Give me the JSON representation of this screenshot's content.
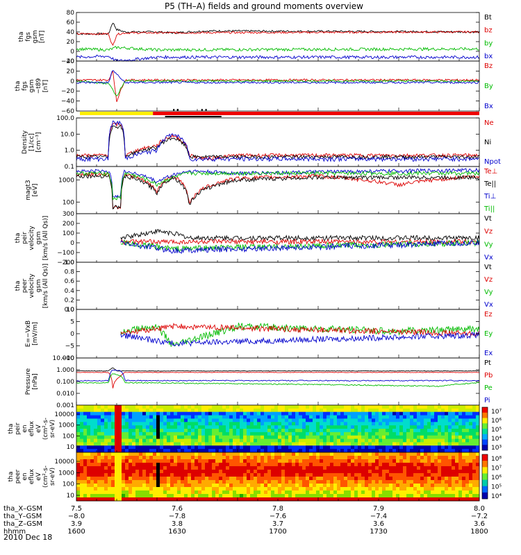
{
  "title": "P5 (TH–A) fields and ground moments overview",
  "date": "2010 Dec 18",
  "chart_data": [
    {
      "id": "p1",
      "type": "line",
      "ylabel": [
        "tha",
        "fgs",
        "gsm",
        "[nT]"
      ],
      "yticks": [
        "80",
        "60",
        "40",
        "20",
        "0",
        "−20"
      ],
      "ylim": [
        -20,
        80
      ],
      "legend": [
        {
          "name": "Bt",
          "color": "#000000"
        },
        {
          "name": "bz",
          "color": "#dd0000"
        },
        {
          "name": "by",
          "color": "#00bb00"
        },
        {
          "name": "bx",
          "color": "#0000cc"
        }
      ],
      "series": [
        {
          "name": "Bt",
          "color": "#000000",
          "base": 40,
          "noise": 2,
          "x": [
            7.5,
            7.54,
            7.545,
            7.55,
            7.56,
            7.6,
            7.62,
            7.66,
            8.0
          ],
          "y": [
            36,
            36,
            60,
            45,
            40,
            40,
            38,
            42,
            40
          ]
        },
        {
          "name": "bz",
          "color": "#dd0000",
          "base": 38,
          "noise": 2,
          "x": [
            7.5,
            7.54,
            7.545,
            7.55,
            7.56,
            8.0
          ],
          "y": [
            36,
            36,
            10,
            35,
            38,
            40
          ]
        },
        {
          "name": "by",
          "color": "#00bb00",
          "base": 5,
          "noise": 3,
          "x": [
            7.5,
            7.54,
            7.55,
            7.6,
            8.0
          ],
          "y": [
            5,
            3,
            8,
            3,
            5
          ]
        },
        {
          "name": "bx",
          "color": "#0000cc",
          "base": -12,
          "noise": 3,
          "x": [
            7.5,
            7.54,
            7.55,
            7.6,
            8.0
          ],
          "y": [
            -12,
            -10,
            -20,
            -12,
            -12
          ]
        }
      ]
    },
    {
      "id": "p2",
      "type": "line",
      "ylabel": [
        "tha",
        "fgs",
        "gsm",
        "−t89",
        "[nT]"
      ],
      "yticks": [
        "40",
        "20",
        "0",
        "−20",
        "−40",
        "−60"
      ],
      "ylim": [
        -60,
        40
      ],
      "legend": [
        {
          "name": "Bz",
          "color": "#dd0000"
        },
        {
          "name": "By",
          "color": "#00bb00"
        },
        {
          "name": "Bx",
          "color": "#0000cc"
        }
      ],
      "series": [
        {
          "name": "Bz",
          "color": "#dd0000",
          "base": 2,
          "noise": 2,
          "x": [
            7.5,
            7.54,
            7.545,
            7.55,
            7.56,
            8.0
          ],
          "y": [
            2,
            2,
            20,
            -40,
            2,
            2
          ]
        },
        {
          "name": "By",
          "color": "#00bb00",
          "base": 0,
          "noise": 2,
          "x": [
            7.5,
            7.54,
            7.55,
            7.56,
            8.0
          ],
          "y": [
            0,
            -5,
            -30,
            0,
            0
          ]
        },
        {
          "name": "Bx",
          "color": "#0000cc",
          "base": -3,
          "noise": 2,
          "x": [
            7.5,
            7.54,
            7.545,
            7.56,
            8.0
          ],
          "y": [
            -3,
            -3,
            22,
            -3,
            -3
          ]
        }
      ]
    },
    {
      "id": "p3",
      "type": "line",
      "ylog": true,
      "ylabel": [
        "Density",
        "[1/cc]",
        "[cm⁻³]"
      ],
      "yticks": [
        "100.0",
        "10.0",
        "1.0",
        "0.1"
      ],
      "ylim": [
        0.1,
        100
      ],
      "legend": [
        {
          "name": "Ne",
          "color": "#dd0000"
        },
        {
          "name": "Ni",
          "color": "#000000"
        },
        {
          "name": "Npot",
          "color": "#0000cc"
        }
      ],
      "series": [
        {
          "name": "Ne",
          "color": "#dd0000",
          "base": 0.5,
          "noise": 0.25,
          "x": [
            7.5,
            7.54,
            7.545,
            7.555,
            7.56,
            7.6,
            7.62,
            7.64,
            7.66,
            7.7,
            8.0
          ],
          "y": [
            0.5,
            0.5,
            40,
            40,
            0.4,
            2,
            8,
            0.5,
            0.3,
            0.5,
            0.5
          ]
        },
        {
          "name": "Ni",
          "color": "#000000",
          "base": 0.4,
          "noise": 0.25,
          "x": [
            7.5,
            7.54,
            7.545,
            7.555,
            7.56,
            7.6,
            7.62,
            7.64,
            8.0
          ],
          "y": [
            0.4,
            0.4,
            30,
            30,
            0.4,
            1.5,
            6,
            0.4,
            0.4
          ]
        },
        {
          "name": "Npot",
          "color": "#0000cc",
          "base": 0.3,
          "noise": 0.3,
          "x": [
            7.5,
            7.54,
            7.545,
            7.555,
            7.56,
            7.6,
            7.62,
            7.64,
            8.0
          ],
          "y": [
            0.3,
            0.3,
            50,
            50,
            0.3,
            1,
            10,
            0.3,
            0.3
          ]
        }
      ]
    },
    {
      "id": "p4",
      "type": "line",
      "ylog": true,
      "ylabel": [
        "magt3",
        "[eV]"
      ],
      "yticks": [
        "1000",
        "100"
      ],
      "ylim": [
        30,
        4000
      ],
      "legend": [
        {
          "name": "Te⊥",
          "color": "#dd0000"
        },
        {
          "name": "Te||",
          "color": "#000000"
        },
        {
          "name": "Ti⊥",
          "color": "#0000cc"
        },
        {
          "name": "Ti||",
          "color": "#00bb00"
        }
      ],
      "series": [
        {
          "name": "Te⊥",
          "color": "#dd0000",
          "base": 1800,
          "noise": 0.2,
          "x": [
            7.5,
            7.54,
            7.545,
            7.555,
            7.56,
            7.6,
            7.62,
            7.64,
            7.7,
            7.8,
            7.9,
            8.0
          ],
          "y": [
            1800,
            1800,
            60,
            60,
            1800,
            300,
            1500,
            80,
            1200,
            1500,
            600,
            1500
          ]
        },
        {
          "name": "Te||",
          "color": "#000000",
          "base": 1500,
          "noise": 0.2,
          "x": [
            7.5,
            7.54,
            7.545,
            7.555,
            7.56,
            7.6,
            7.62,
            7.64,
            7.7,
            7.8,
            8.0
          ],
          "y": [
            1500,
            1500,
            60,
            60,
            1500,
            250,
            1300,
            70,
            1000,
            1300,
            1300
          ]
        },
        {
          "name": "Ti⊥",
          "color": "#0000cc",
          "base": 2500,
          "noise": 0.2,
          "x": [
            7.5,
            7.54,
            7.545,
            7.555,
            7.56,
            7.6,
            7.64,
            7.7,
            8.0
          ],
          "y": [
            2500,
            2500,
            200,
            200,
            2500,
            800,
            2500,
            2000,
            2800
          ]
        },
        {
          "name": "Ti||",
          "color": "#00bb00",
          "base": 2000,
          "noise": 0.2,
          "x": [
            7.5,
            7.54,
            7.545,
            7.555,
            7.56,
            7.6,
            7.64,
            8.0
          ],
          "y": [
            2000,
            2000,
            150,
            150,
            2000,
            600,
            2000,
            2000
          ]
        }
      ]
    },
    {
      "id": "p5",
      "type": "line",
      "ylabel": [
        "tha",
        "peir",
        "velocity",
        "gsm",
        "[km/s (All Qs)]"
      ],
      "yticks": [
        "300",
        "200",
        "100",
        "0",
        "−100",
        "−200"
      ],
      "ylim": [
        -200,
        300
      ],
      "legend": [
        {
          "name": "Vt",
          "color": "#000000"
        },
        {
          "name": "Vz",
          "color": "#dd0000"
        },
        {
          "name": "Vy",
          "color": "#00bb00"
        },
        {
          "name": "Vx",
          "color": "#0000cc"
        }
      ],
      "series": [
        {
          "name": "Vt",
          "color": "#000000",
          "start": 7.555,
          "base": 50,
          "noise": 25,
          "x": [
            7.555,
            7.6,
            7.62,
            7.64,
            8.0
          ],
          "y": [
            50,
            120,
            100,
            50,
            50
          ]
        },
        {
          "name": "Vz",
          "color": "#dd0000",
          "start": 7.555,
          "base": 10,
          "noise": 25,
          "x": [
            7.555,
            8.0
          ],
          "y": [
            10,
            10
          ]
        },
        {
          "name": "Vy",
          "color": "#00bb00",
          "start": 7.555,
          "base": 0,
          "noise": 30,
          "x": [
            7.555,
            7.62,
            8.0
          ],
          "y": [
            0,
            -60,
            0
          ]
        },
        {
          "name": "Vx",
          "color": "#0000cc",
          "start": 7.555,
          "base": 0,
          "noise": 30,
          "x": [
            7.555,
            7.62,
            8.0
          ],
          "y": [
            0,
            -80,
            0
          ]
        }
      ]
    },
    {
      "id": "p6",
      "type": "line",
      "ylabel": [
        "tha",
        "peer",
        "velocity",
        "gsm",
        "[km/s (All Qs)]"
      ],
      "yticks": [
        "1.0",
        "0.8",
        "0.6",
        "0.4",
        "0.2",
        "0.0"
      ],
      "ylim": [
        0,
        1
      ],
      "legend": [
        {
          "name": "Vt",
          "color": "#000000"
        },
        {
          "name": "Vz",
          "color": "#dd0000"
        },
        {
          "name": "Vy",
          "color": "#00bb00"
        },
        {
          "name": "Vx",
          "color": "#0000cc"
        }
      ],
      "series": []
    },
    {
      "id": "p7",
      "type": "line",
      "ylabel": [
        "E=−VxB",
        "[mV/m]"
      ],
      "yticks": [
        "10",
        "5",
        "0",
        "−5",
        "−10"
      ],
      "ylim": [
        -10,
        10
      ],
      "legend": [
        {
          "name": "Ez",
          "color": "#dd0000"
        },
        {
          "name": "Ey",
          "color": "#00bb00"
        },
        {
          "name": "Ex",
          "color": "#0000cc"
        }
      ],
      "series": [
        {
          "name": "Ey",
          "color": "#00bb00",
          "start": 7.555,
          "base": 1,
          "noise": 1.5,
          "x": [
            7.555,
            7.6,
            7.62,
            7.7,
            7.9,
            8.0
          ],
          "y": [
            1,
            3,
            -5,
            3,
            1,
            2
          ]
        },
        {
          "name": "Ez",
          "color": "#dd0000",
          "start": 7.555,
          "base": 0,
          "noise": 1.2,
          "x": [
            7.555,
            7.62,
            8.0
          ],
          "y": [
            0,
            3,
            0
          ]
        },
        {
          "name": "Ex",
          "color": "#0000cc",
          "start": 7.555,
          "base": -0.5,
          "noise": 1.2,
          "x": [
            7.555,
            7.62,
            8.0
          ],
          "y": [
            -0.5,
            -4,
            -0.5
          ]
        }
      ]
    },
    {
      "id": "p8",
      "type": "line",
      "ylog": true,
      "ylabel": [
        "Pressure",
        "[nPa]"
      ],
      "yticks": [
        "10.000",
        "1.000",
        "0.100",
        "0.010",
        "0.001"
      ],
      "ylim": [
        0.001,
        10
      ],
      "legend": [
        {
          "name": "Pt",
          "color": "#000000"
        },
        {
          "name": "Pb",
          "color": "#dd0000"
        },
        {
          "name": "Pe",
          "color": "#00bb00"
        },
        {
          "name": "Pi",
          "color": "#0000cc"
        }
      ],
      "series": [
        {
          "name": "Pt",
          "color": "#000000",
          "base": 0.8,
          "noise": 0.05,
          "x": [
            7.5,
            7.54,
            7.545,
            7.55,
            8.0
          ],
          "y": [
            0.8,
            0.8,
            1.5,
            0.8,
            0.8
          ]
        },
        {
          "name": "Pb",
          "color": "#dd0000",
          "base": 0.6,
          "noise": 0.05,
          "x": [
            7.5,
            7.54,
            7.545,
            7.555,
            7.56,
            8.0
          ],
          "y": [
            0.6,
            0.6,
            0.02,
            0.3,
            0.6,
            0.6
          ]
        },
        {
          "name": "Pi",
          "color": "#0000cc",
          "base": 0.12,
          "noise": 0.1,
          "x": [
            7.5,
            7.54,
            7.545,
            7.555,
            7.56,
            8.0
          ],
          "y": [
            0.12,
            0.12,
            1,
            0.8,
            0.12,
            0.12
          ]
        },
        {
          "name": "Pe",
          "color": "#00bb00",
          "base": 0.08,
          "noise": 0.1,
          "x": [
            7.5,
            7.54,
            7.545,
            7.555,
            7.56,
            7.95,
            8.0
          ],
          "y": [
            0.08,
            0.08,
            0.5,
            0.3,
            0.08,
            0.04,
            0.08
          ]
        }
      ]
    },
    {
      "id": "p9",
      "type": "heatmap",
      "ylabel": [
        "tha",
        "peir",
        "en",
        "eflux",
        "eV",
        "(cm²-s-",
        "sr-eV)"
      ],
      "yticks": [
        "10000",
        "1000",
        "100",
        "10"
      ],
      "colorbar_ticks": [
        "10⁷",
        "10⁶",
        "10⁵",
        "10⁴",
        "10³"
      ]
    },
    {
      "id": "p10",
      "type": "heatmap",
      "ylabel": [
        "tha",
        "peer",
        "en",
        "eflux",
        "eV",
        "(cm²-s-",
        "sr-eV)"
      ],
      "yticks": [
        "10000",
        "1000",
        "100",
        "10"
      ],
      "colorbar_ticks": [
        "10⁸",
        "10⁷",
        "10⁶",
        "10⁵",
        "10⁴"
      ]
    }
  ],
  "xaxis": {
    "labels": [
      "tha_X–GSM",
      "tha_Y–GSM",
      "tha_Z–GSM",
      "hhmm"
    ],
    "ticks": [
      {
        "x": 7.5,
        "vals": [
          "7.5",
          "−8.0",
          "3.9",
          "1600"
        ]
      },
      {
        "x": 7.6,
        "vals": [
          "7.6",
          "−7.8",
          "3.8",
          "1630"
        ]
      },
      {
        "x": 7.8,
        "vals": [
          "7.8",
          "−7.6",
          "3.7",
          "1700"
        ]
      },
      {
        "x": 7.9,
        "vals": [
          "7.9",
          "−7.4",
          "3.6",
          "1730"
        ]
      },
      {
        "x": 8.0,
        "vals": [
          "8.0",
          "−7.2",
          "3.6",
          "1800"
        ]
      }
    ]
  }
}
